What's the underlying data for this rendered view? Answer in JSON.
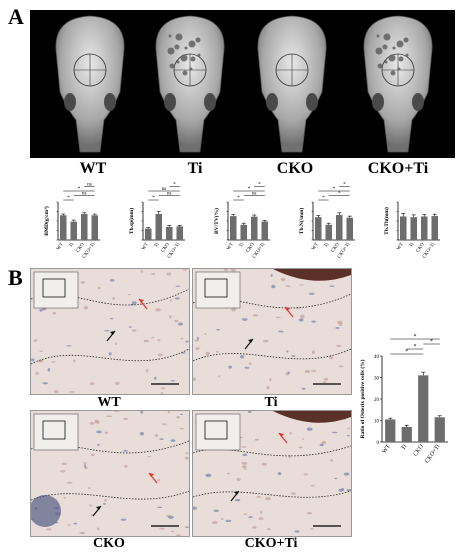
{
  "panels": {
    "a": {
      "letter": "A"
    },
    "b": {
      "letter": "B"
    }
  },
  "skull_labels": [
    "WT",
    "Ti",
    "CKO",
    "CKO+Ti"
  ],
  "micro_labels": [
    "WT",
    "Ti",
    "CKO",
    "CKO+Ti"
  ],
  "chart_data": [
    {
      "type": "bar",
      "ylabel": "BMD(g/cm³)",
      "categories": [
        "WT",
        "Ti",
        "CKO",
        "CKO+Ti"
      ],
      "values": [
        0.78,
        0.58,
        0.82,
        0.78
      ],
      "errors": [
        0.04,
        0.05,
        0.04,
        0.04
      ],
      "ylim": [
        0,
        1.2
      ],
      "significance": [
        "*",
        "ns",
        "*",
        "ns"
      ]
    },
    {
      "type": "bar",
      "ylabel": "Tb.sp(mm)",
      "categories": [
        "WT",
        "Ti",
        "CKO",
        "CKO+Ti"
      ],
      "values": [
        0.21,
        0.48,
        0.24,
        0.25
      ],
      "errors": [
        0.02,
        0.05,
        0.03,
        0.02
      ],
      "ylim": [
        0,
        0.7
      ],
      "significance": [
        "*",
        "ns",
        "ns",
        "*"
      ]
    },
    {
      "type": "bar",
      "ylabel": "BV/TV(%)",
      "categories": [
        "WT",
        "Ti",
        "CKO",
        "CKO+Ti"
      ],
      "values": [
        44,
        28,
        43,
        34
      ],
      "errors": [
        3,
        3,
        3,
        2
      ],
      "ylim": [
        0,
        70
      ],
      "significance": [
        "*",
        "ns",
        "*",
        "*"
      ]
    },
    {
      "type": "bar",
      "ylabel": "Tb.N(/mm)",
      "categories": [
        "WT",
        "Ti",
        "CKO",
        "CKO+Ti"
      ],
      "values": [
        4.2,
        2.8,
        4.6,
        4.1
      ],
      "errors": [
        0.3,
        0.3,
        0.4,
        0.3
      ],
      "ylim": [
        0,
        7
      ],
      "significance": [
        "*",
        "*",
        "*",
        "*"
      ]
    },
    {
      "type": "bar",
      "ylabel": "Tb.Th(mm)",
      "categories": [
        "WT",
        "Ti",
        "CKO",
        "CKO+Ti"
      ],
      "values": [
        0.062,
        0.06,
        0.062,
        0.063
      ],
      "errors": [
        0.008,
        0.006,
        0.005,
        0.005
      ],
      "ylim": [
        0,
        0.1
      ],
      "significance": []
    },
    {
      "type": "bar",
      "ylabel": "Ratio of Osterix positive cells (%)",
      "categories": [
        "WT",
        "Ti",
        "CKO",
        "CKO+Ti"
      ],
      "values": [
        10.5,
        7,
        31,
        11.5
      ],
      "errors": [
        0.6,
        0.8,
        1.5,
        0.7
      ],
      "ylim": [
        0,
        40
      ],
      "yticks": [
        0,
        10,
        20,
        30,
        40
      ],
      "significance": [
        "*",
        "*",
        "*",
        "*"
      ]
    }
  ],
  "colors": {
    "bar": "#6d6d6d",
    "tissue": "#e8ddd8",
    "arrow_red": "#e8302a",
    "arrow_black": "#111111"
  }
}
